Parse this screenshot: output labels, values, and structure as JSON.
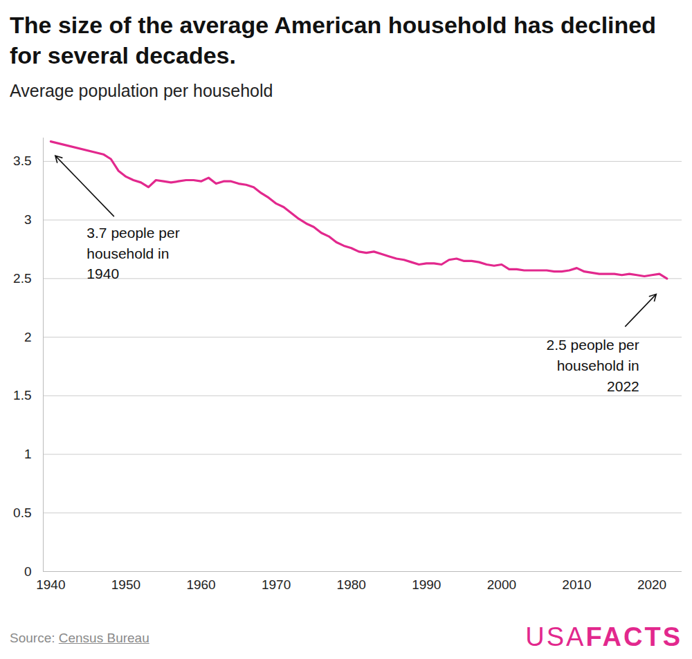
{
  "chart_data": {
    "type": "line",
    "title": "The size of the average American household has declined for several decades.",
    "subtitle": "Average population per household",
    "x": [
      1940,
      1947,
      1948,
      1949,
      1950,
      1951,
      1952,
      1953,
      1954,
      1955,
      1956,
      1957,
      1958,
      1959,
      1960,
      1961,
      1962,
      1963,
      1964,
      1965,
      1966,
      1967,
      1968,
      1969,
      1970,
      1971,
      1972,
      1973,
      1974,
      1975,
      1976,
      1977,
      1978,
      1979,
      1980,
      1981,
      1982,
      1983,
      1984,
      1985,
      1986,
      1987,
      1988,
      1989,
      1990,
      1991,
      1992,
      1993,
      1994,
      1995,
      1996,
      1997,
      1998,
      1999,
      2000,
      2001,
      2002,
      2003,
      2004,
      2005,
      2006,
      2007,
      2008,
      2009,
      2010,
      2011,
      2012,
      2013,
      2014,
      2015,
      2016,
      2017,
      2018,
      2019,
      2020,
      2021,
      2022
    ],
    "values": [
      3.67,
      3.56,
      3.52,
      3.42,
      3.37,
      3.34,
      3.32,
      3.28,
      3.34,
      3.33,
      3.32,
      3.33,
      3.34,
      3.34,
      3.33,
      3.36,
      3.31,
      3.33,
      3.33,
      3.31,
      3.3,
      3.28,
      3.23,
      3.19,
      3.14,
      3.11,
      3.06,
      3.01,
      2.97,
      2.94,
      2.89,
      2.86,
      2.81,
      2.78,
      2.76,
      2.73,
      2.72,
      2.73,
      2.71,
      2.69,
      2.67,
      2.66,
      2.64,
      2.62,
      2.63,
      2.63,
      2.62,
      2.66,
      2.67,
      2.65,
      2.65,
      2.64,
      2.62,
      2.61,
      2.62,
      2.58,
      2.58,
      2.57,
      2.57,
      2.57,
      2.57,
      2.56,
      2.56,
      2.57,
      2.59,
      2.56,
      2.55,
      2.54,
      2.54,
      2.54,
      2.53,
      2.54,
      2.53,
      2.52,
      2.53,
      2.54,
      2.5
    ],
    "color": "#e2288d",
    "xlim": [
      1939,
      2024
    ],
    "xticks": [
      1940,
      1950,
      1960,
      1970,
      1980,
      1990,
      2000,
      2010,
      2020
    ],
    "ylim": [
      0,
      3.7
    ],
    "yticks": [
      0,
      0.5,
      1,
      1.5,
      2,
      2.5,
      3,
      3.5
    ],
    "grid": true,
    "annotations": [
      {
        "text": "3.7 people per\nhousehold in\n1940",
        "x": 1940
      },
      {
        "text": "2.5 people per\nhousehold in\n2022",
        "x": 2022
      }
    ],
    "source": {
      "label": "Source:",
      "text": "Census Bureau"
    },
    "logo": [
      "USA",
      "FACTS"
    ]
  }
}
